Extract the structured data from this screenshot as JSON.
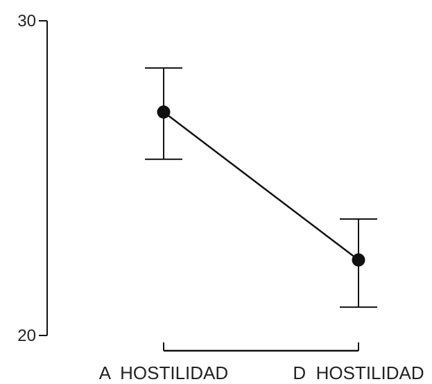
{
  "chart_data": {
    "type": "line",
    "categories": [
      "A  HOSTILIDAD",
      "D  HOSTILIDAD"
    ],
    "series": [
      {
        "values": [
          27.1,
          22.4
        ],
        "error_low": [
          25.6,
          20.9
        ],
        "error_high": [
          28.5,
          23.7
        ]
      }
    ],
    "title": "",
    "xlabel": "",
    "ylabel": "",
    "ylim": [
      20,
      30
    ],
    "yticks": [
      "20",
      "30"
    ],
    "grid": false,
    "legend": "none",
    "colors": {
      "line": "#111111",
      "axis": "#111111",
      "text": "#222222"
    }
  }
}
